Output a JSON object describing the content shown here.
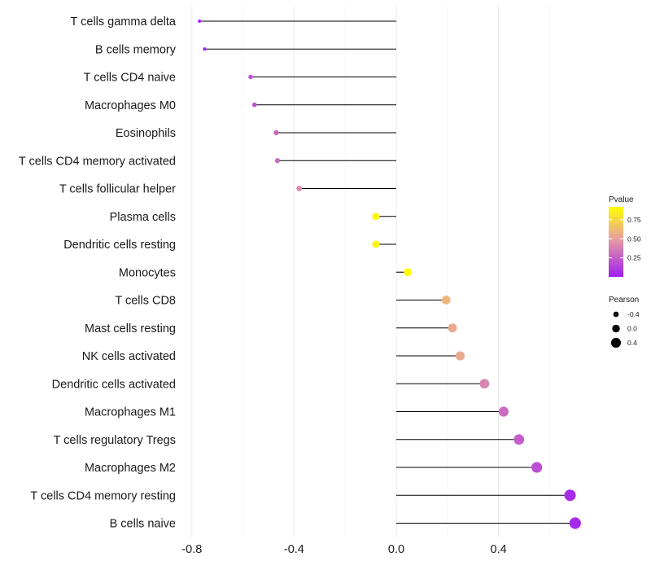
{
  "chart_data": {
    "type": "lollipop",
    "title": "",
    "xlabel": "",
    "ylabel": "",
    "xlim": [
      -0.8,
      0.7
    ],
    "x_ticks": [
      -0.8,
      -0.4,
      0.0,
      0.4
    ],
    "x_tick_labels": [
      "-0.8",
      "-0.4",
      "0.0",
      "0.4"
    ],
    "grid": true,
    "categories": [
      "T cells gamma delta",
      "B cells memory",
      "T cells CD4 naive",
      "Macrophages M0",
      "Eosinophils",
      "T cells CD4 memory activated",
      "T cells follicular helper",
      "Plasma cells",
      "Dendritic cells resting",
      "Monocytes",
      "T cells CD8",
      "Mast cells resting",
      "NK cells activated",
      "Dendritic cells activated",
      "Macrophages M1",
      "T cells regulatory  Tregs ",
      "Macrophages M2",
      "T cells CD4 memory resting",
      "B cells naive"
    ],
    "pearson": [
      -0.77,
      -0.75,
      -0.57,
      -0.555,
      -0.47,
      -0.465,
      -0.38,
      -0.08,
      -0.08,
      0.045,
      0.195,
      0.22,
      0.25,
      0.345,
      0.42,
      0.48,
      0.55,
      0.68,
      0.7
    ],
    "pvalue": [
      0.01,
      0.03,
      0.2,
      0.2,
      0.28,
      0.3,
      0.42,
      0.88,
      0.88,
      0.9,
      0.6,
      0.55,
      0.55,
      0.4,
      0.3,
      0.24,
      0.18,
      0.05,
      0.04
    ],
    "legend": {
      "color": {
        "title": "Pvalue",
        "ticks": [
          0.75,
          0.5,
          0.25
        ],
        "tick_labels": [
          "0.75",
          "0.50",
          "0.25"
        ],
        "range": [
          0.0,
          0.92
        ],
        "low_color": "#A020F0",
        "mid_color": "#E8A0A0",
        "high_color": "#FFFF00"
      },
      "size": {
        "title": "Pearson",
        "entries": [
          "-0.4",
          "0.0",
          "0.4"
        ]
      },
      "placement": "right"
    }
  }
}
